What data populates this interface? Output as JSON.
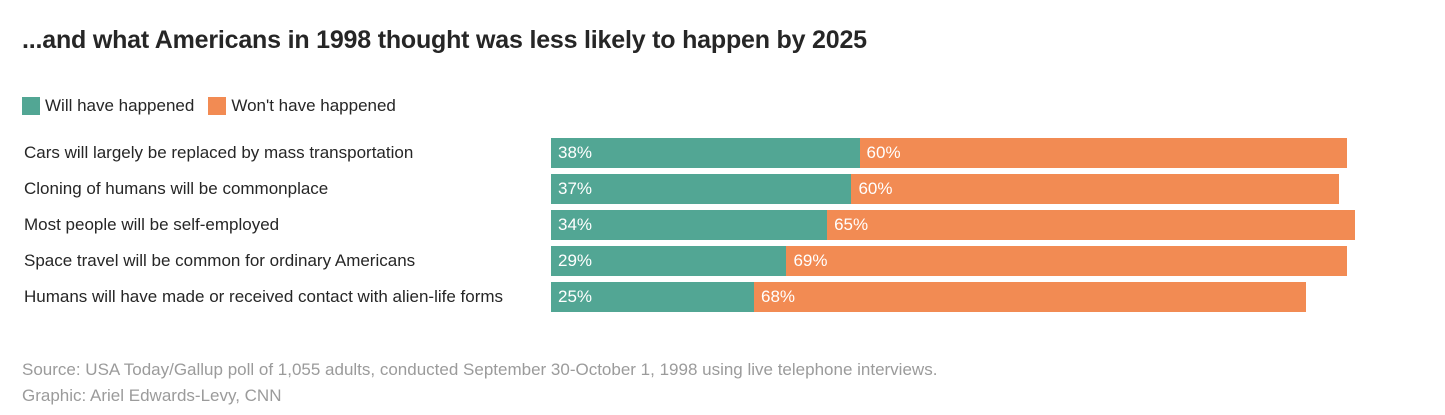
{
  "title": "...and what Americans in 1998 thought was less likely to happen by 2025",
  "legend": [
    {
      "label": "Will have happened",
      "color": "#52a694"
    },
    {
      "label": "Won't have happened",
      "color": "#f28b53"
    }
  ],
  "chart_data": {
    "type": "bar",
    "orientation": "horizontal",
    "stacked": true,
    "title": "...and what Americans in 1998 thought was less likely to happen by 2025",
    "categories": [
      "Cars will largely be replaced by mass transportation",
      "Cloning of humans will be commonplace",
      "Most people will be self-employed",
      "Space travel will be common for ordinary Americans",
      "Humans will have made or received contact with alien-life forms"
    ],
    "series": [
      {
        "name": "Will have happened",
        "color": "#52a694",
        "values": [
          38,
          37,
          34,
          29,
          25
        ],
        "labels": [
          "38%",
          "37%",
          "34%",
          "29%",
          "25%"
        ]
      },
      {
        "name": "Won't have happened",
        "color": "#f28b53",
        "values": [
          60,
          60,
          65,
          69,
          68
        ],
        "labels": [
          "60%",
          "60%",
          "65%",
          "69%",
          "68%"
        ]
      }
    ],
    "xlim": [
      0,
      100
    ],
    "grid": false,
    "legend_position": "top-left"
  },
  "footer": {
    "source": "Source: USA Today/Gallup poll of 1,055 adults, conducted September 30-October 1, 1998 using live telephone interviews.",
    "credit": "Graphic: Ariel Edwards-Levy, CNN"
  }
}
